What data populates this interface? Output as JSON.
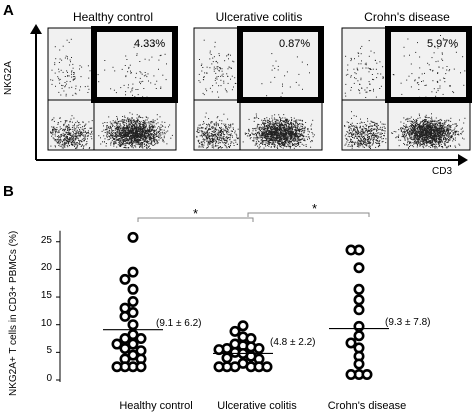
{
  "panel_a": {
    "letter": "A",
    "y_axis_label": "NKG2A",
    "x_axis_label": "CD3",
    "plots": [
      {
        "title": "Healthy control",
        "percent": "4.33%"
      },
      {
        "title": "Ulcerative colitis",
        "percent": "0.87%"
      },
      {
        "title": "Crohn's disease",
        "percent": "5.97%"
      }
    ]
  },
  "panel_b": {
    "letter": "B",
    "y_axis_label": "NKG2A+ T cells in CD3+ PBMCs (%)",
    "significance_mark": "*"
  },
  "chart_data": {
    "type": "scatter",
    "ylim": [
      0,
      27
    ],
    "yticks": [
      "0",
      "5",
      "10",
      "15",
      "20",
      "25"
    ],
    "categories": [
      "Healthy control",
      "Ulcerative colitis",
      "Crohn's disease"
    ],
    "summaries": [
      "(9.1 ± 6.2)",
      "(4.8 ± 2.2)",
      "(9.3 ± 7.8)"
    ],
    "means": [
      9.1,
      4.8,
      9.3
    ],
    "significance": [
      {
        "groups": [
          0,
          1
        ],
        "label": "*"
      },
      {
        "groups": [
          1,
          2
        ],
        "label": "*"
      }
    ],
    "series": [
      {
        "values": [
          25.8,
          19.5,
          18.2,
          16.4,
          14.2,
          13.0,
          12.2,
          11.5,
          10.0,
          8.2,
          7.5,
          7.5,
          6.5,
          6.5,
          5.7,
          5.3,
          4.5,
          3.8,
          3.8,
          2.4,
          2.4,
          2.4,
          2.4
        ]
      },
      {
        "values": [
          9.8,
          8.8,
          7.8,
          7.5,
          6.5,
          6.2,
          6.0,
          5.7,
          5.7,
          5.5,
          5.0,
          4.8,
          4.3,
          4.0,
          3.8,
          3.0,
          2.4,
          2.4,
          2.4,
          2.4,
          2.4,
          2.4
        ]
      },
      {
        "values": [
          23.5,
          23.5,
          20.3,
          16.4,
          14.5,
          12.7,
          9.7,
          8.0,
          6.7,
          5.8,
          4.3,
          2.9,
          1.0,
          1.0,
          1.0
        ]
      }
    ]
  }
}
